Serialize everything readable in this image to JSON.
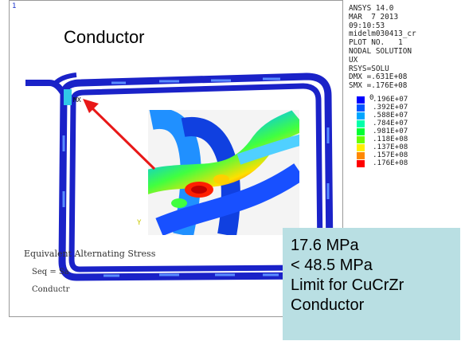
{
  "frame_number": "1",
  "title": "Conductor",
  "plot_header": {
    "lines": [
      "ANSYS 14.0",
      "MAR  7 2013",
      "09:10:53",
      "midelm030413_cr",
      "PLOT NO.   1",
      "NODAL SOLUTION",
      "UX",
      "RSYS=SOLU",
      "DMX =.631E+08",
      "SMX =.176E+08"
    ]
  },
  "legend": {
    "zero": "0",
    "entries": [
      {
        "color": "#0000ff",
        "label": ".196E+07"
      },
      {
        "color": "#0055ff",
        "label": ".392E+07"
      },
      {
        "color": "#00a6ff",
        "label": ".588E+07"
      },
      {
        "color": "#00ffaa",
        "label": ".784E+07"
      },
      {
        "color": "#00ff33",
        "label": ".981E+07"
      },
      {
        "color": "#66ff00",
        "label": ".118E+08"
      },
      {
        "color": "#ffee00",
        "label": ".137E+08"
      },
      {
        "color": "#ff8800",
        "label": ".157E+08"
      },
      {
        "color": "#ff0000",
        "label": ".176E+08"
      }
    ]
  },
  "annotations": {
    "stress": "Equivalent Alternating Stress",
    "seq": "Seq = Sa",
    "material": "Conductr",
    "axis_y": "Y"
  },
  "result_box": {
    "line1": "17.6 MPa",
    "line2": "< 48.5 MPa",
    "line3": "Limit for CuCrZr",
    "line4": "Conductor"
  },
  "colors": {
    "conductor_blue": "#1a22c8",
    "arrow": "#e81818",
    "result_box_bg": "#b9dfe3"
  }
}
